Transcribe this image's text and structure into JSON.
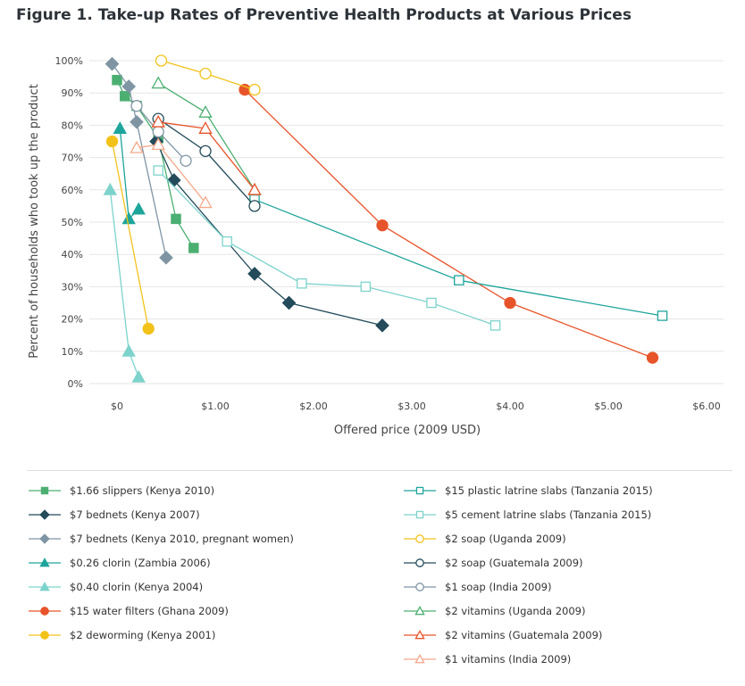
{
  "title": "Figure 1. Take-up Rates of Preventive Health Products at Various Prices",
  "chart_data": {
    "type": "line",
    "xlabel": "Offered price (2009 USD)",
    "ylabel": "Percent of households who took up the product",
    "xlim": [
      -0.1,
      6.2
    ],
    "ylim": [
      0,
      100
    ],
    "xticks": [
      "$0",
      "$1.00",
      "$2.00",
      "$3.00",
      "$4.00",
      "$5.00",
      "$6.00"
    ],
    "yticks": [
      "0%",
      "10%",
      "20%",
      "30%",
      "40%",
      "50%",
      "60%",
      "70%",
      "80%",
      "90%",
      "100%"
    ],
    "grid": true,
    "legend_position": "bottom",
    "series": [
      {
        "name": "$1.66 slippers (Kenya 2010)",
        "color": "#4caf72",
        "marker": "square",
        "filled": true,
        "x": [
          0.0,
          0.08,
          0.2,
          0.42,
          0.6,
          0.78
        ],
        "y": [
          94,
          89,
          86,
          76,
          51,
          42
        ]
      },
      {
        "name": "$7 bednets (Kenya 2007)",
        "color": "#234b5a",
        "marker": "diamond",
        "filled": true,
        "x": [
          0.4,
          0.58,
          1.4,
          1.75,
          2.7
        ],
        "y": [
          75,
          63,
          34,
          25,
          18
        ]
      },
      {
        "name": "$7 bednets (Kenya 2010, pregnant women)",
        "color": "#7f95a3",
        "marker": "diamond",
        "filled": true,
        "x": [
          -0.05,
          0.12,
          0.2,
          0.5
        ],
        "y": [
          99,
          92,
          81,
          39
        ]
      },
      {
        "name": "$0.26 clorin (Zambia 2006)",
        "color": "#1ea59b",
        "marker": "triangle",
        "filled": true,
        "x": [
          0.03,
          0.12,
          0.22
        ],
        "y": [
          79,
          51,
          54
        ]
      },
      {
        "name": "$0.40 clorin (Kenya 2004)",
        "color": "#7dd3cb",
        "marker": "triangle",
        "filled": true,
        "x": [
          -0.07,
          0.12,
          0.22
        ],
        "y": [
          60,
          10,
          2
        ]
      },
      {
        "name": "$15 water filters (Ghana 2009)",
        "color": "#e8542a",
        "marker": "circle",
        "filled": true,
        "x": [
          1.3,
          2.7,
          4.0,
          5.45
        ],
        "y": [
          91,
          49,
          25,
          8
        ]
      },
      {
        "name": "$2 deworming (Kenya 2001)",
        "color": "#f2c21b",
        "marker": "circle",
        "filled": true,
        "x": [
          -0.05,
          0.32
        ],
        "y": [
          75,
          17
        ]
      },
      {
        "name": "$15 plastic latrine slabs (Tanzania 2015)",
        "color": "#1ea59b",
        "marker": "square",
        "filled": false,
        "x": [
          1.4,
          3.48,
          5.55
        ],
        "y": [
          57,
          32,
          21
        ]
      },
      {
        "name": "$5 cement latrine slabs (Tanzania 2015)",
        "color": "#7dd3cb",
        "marker": "square",
        "filled": false,
        "x": [
          0.42,
          1.12,
          1.88,
          2.53,
          3.2,
          3.85
        ],
        "y": [
          66,
          44,
          31,
          30,
          25,
          18
        ]
      },
      {
        "name": "$2 soap (Uganda 2009)",
        "color": "#f2c21b",
        "marker": "circle",
        "filled": false,
        "x": [
          0.45,
          0.9,
          1.4
        ],
        "y": [
          100,
          96,
          91
        ]
      },
      {
        "name": "$2 soap (Guatemala 2009)",
        "color": "#234b5a",
        "marker": "circle",
        "filled": false,
        "x": [
          0.42,
          0.9,
          1.4
        ],
        "y": [
          82,
          72,
          55
        ]
      },
      {
        "name": "$1 soap (India 2009)",
        "color": "#7f95a3",
        "marker": "circle",
        "filled": false,
        "x": [
          0.2,
          0.42,
          0.7
        ],
        "y": [
          86,
          78,
          69
        ]
      },
      {
        "name": "$2 vitamins (Uganda 2009)",
        "color": "#4caf72",
        "marker": "triangle",
        "filled": false,
        "x": [
          0.42,
          0.9,
          1.4
        ],
        "y": [
          93,
          84,
          60
        ]
      },
      {
        "name": "$2 vitamins (Guatemala 2009)",
        "color": "#e8542a",
        "marker": "triangle",
        "filled": false,
        "x": [
          0.42,
          0.9,
          1.4
        ],
        "y": [
          81,
          79,
          60
        ]
      },
      {
        "name": "$1 vitamins (India 2009)",
        "color": "#f4a98c",
        "marker": "triangle",
        "filled": false,
        "x": [
          0.2,
          0.42,
          0.9
        ],
        "y": [
          73,
          74,
          56
        ]
      }
    ]
  }
}
